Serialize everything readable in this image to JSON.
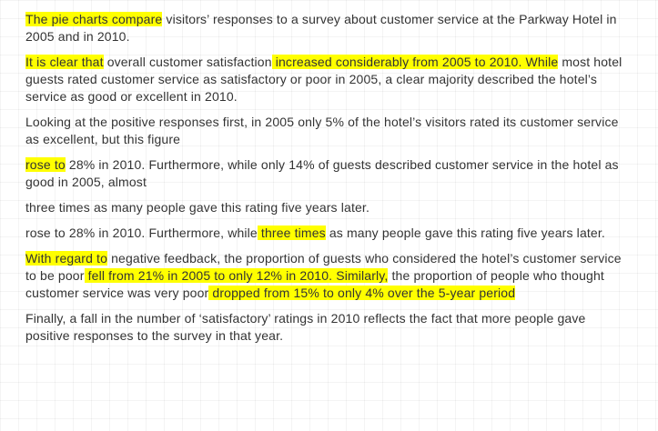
{
  "paragraphs": [
    {
      "segments": [
        {
          "text": "The pie charts compare",
          "highlight": true
        },
        {
          "text": " visitors’ responses to a survey about customer service at the Parkway Hotel in 2005 and in 2010.",
          "highlight": false
        }
      ]
    },
    {
      "segments": [
        {
          "text": "It is clear that",
          "highlight": true
        },
        {
          "text": " overall customer satisfaction",
          "highlight": false
        },
        {
          "text": " increased considerably from 2005 to 2010. While",
          "highlight": true
        },
        {
          "text": " most hotel guests rated customer service as satisfactory or poor in 2005, a clear majority described the hotel’s service as good or excellent in 2010.",
          "highlight": false
        }
      ]
    },
    {
      "segments": [
        {
          "text": "Looking at the positive responses first, in 2005 only 5% of the hotel’s visitors rated its customer service as excellent, but this figure",
          "highlight": false
        }
      ]
    },
    {
      "segments": [
        {
          "text": "rose to",
          "highlight": true
        },
        {
          "text": " 28% in 2010. Furthermore, while only 14% of guests described customer service in the hotel as good in 2005, almost",
          "highlight": false
        }
      ]
    },
    {
      "segments": [
        {
          "text": "three times as many people gave this rating five years later.",
          "highlight": false
        }
      ]
    },
    {
      "segments": [
        {
          "text": "rose to 28% in 2010. Furthermore, while",
          "highlight": false
        },
        {
          "text": " three times",
          "highlight": true
        },
        {
          "text": " as many people gave this rating five years later.",
          "highlight": false
        }
      ]
    },
    {
      "segments": [
        {
          "text": "With regard to",
          "highlight": true
        },
        {
          "text": " negative feedback, the proportion of guests who considered the hotel’s customer service to be poor",
          "highlight": false
        },
        {
          "text": " fell from 21% in 2005 to only 12% in 2010. Similarly,",
          "highlight": true
        },
        {
          "text": " the proportion of people who thought customer service was very poor",
          "highlight": false
        },
        {
          "text": " dropped from 15% to only 4% over the 5-year period",
          "highlight": true
        }
      ]
    },
    {
      "segments": [
        {
          "text": "Finally, a fall in the number of ‘satisfactory’ ratings in 2010 reflects the fact that more people gave positive responses to the survey in that year.",
          "highlight": false
        }
      ]
    }
  ],
  "colors": {
    "highlight": "#ffff00",
    "text": "#333333",
    "background": "#ffffff"
  }
}
